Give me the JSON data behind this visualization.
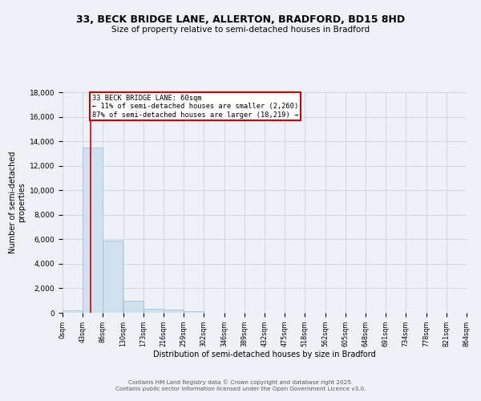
{
  "title_line1": "33, BECK BRIDGE LANE, ALLERTON, BRADFORD, BD15 8HD",
  "title_line2": "Size of property relative to semi-detached houses in Bradford",
  "xlabel": "Distribution of semi-detached houses by size in Bradford",
  "ylabel": "Number of semi-detached\nproperties",
  "annotation_title": "33 BECK BRIDGE LANE: 60sqm",
  "annotation_line2": "← 11% of semi-detached houses are smaller (2,260)",
  "annotation_line3": "87% of semi-detached houses are larger (18,219) →",
  "property_size_sqm": 60,
  "bin_edges": [
    0,
    43,
    86,
    130,
    173,
    216,
    259,
    302,
    346,
    389,
    432,
    475,
    518,
    562,
    605,
    648,
    691,
    734,
    778,
    821,
    864
  ],
  "bin_counts": [
    200,
    13500,
    5900,
    950,
    300,
    270,
    100,
    0,
    0,
    0,
    0,
    0,
    0,
    0,
    0,
    0,
    0,
    0,
    0,
    0
  ],
  "bar_color": "#cfe0ef",
  "bar_edge_color": "#9bbdd4",
  "property_line_color": "#cc0000",
  "annotation_box_edge_color": "#cc0000",
  "background_color": "#eef2f7",
  "grid_color": "#c8d4e0",
  "footer_line1": "Contains HM Land Registry data © Crown copyright and database right 2025.",
  "footer_line2": "Contains public sector information licensed under the Open Government Licence v3.0.",
  "ylim": [
    0,
    18000
  ],
  "yticks": [
    0,
    2000,
    4000,
    6000,
    8000,
    10000,
    12000,
    14000,
    16000,
    18000
  ]
}
